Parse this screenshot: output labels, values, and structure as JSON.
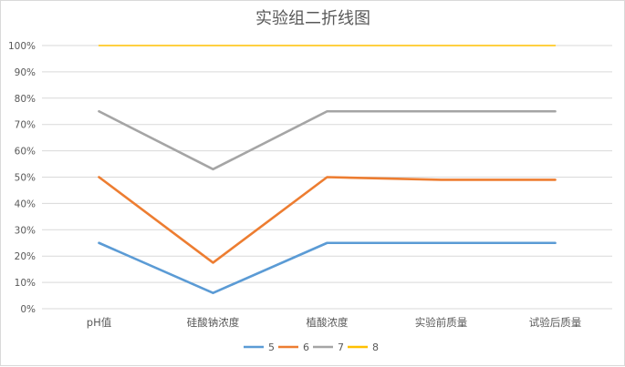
{
  "chart_data": {
    "type": "line",
    "title": "实验组二折线图",
    "categories": [
      "pH值",
      "硅酸钠浓度",
      "植酸浓度",
      "实验前质量",
      "试验后质量"
    ],
    "ylim": [
      0,
      1
    ],
    "yticks": [
      "0%",
      "10%",
      "20%",
      "30%",
      "40%",
      "50%",
      "60%",
      "70%",
      "80%",
      "90%",
      "100%"
    ],
    "grid": true,
    "legend_position": "bottom",
    "series": [
      {
        "name": "5",
        "color": "#5b9bd5",
        "values": [
          0.25,
          0.06,
          0.25,
          0.25,
          0.25
        ]
      },
      {
        "name": "6",
        "color": "#ed7d31",
        "values": [
          0.5,
          0.175,
          0.5,
          0.49,
          0.49
        ]
      },
      {
        "name": "7",
        "color": "#a5a5a5",
        "values": [
          0.75,
          0.53,
          0.75,
          0.75,
          0.75
        ]
      },
      {
        "name": "8",
        "color": "#ffc000",
        "values": [
          1.0,
          1.0,
          1.0,
          1.0,
          1.0
        ]
      }
    ]
  }
}
